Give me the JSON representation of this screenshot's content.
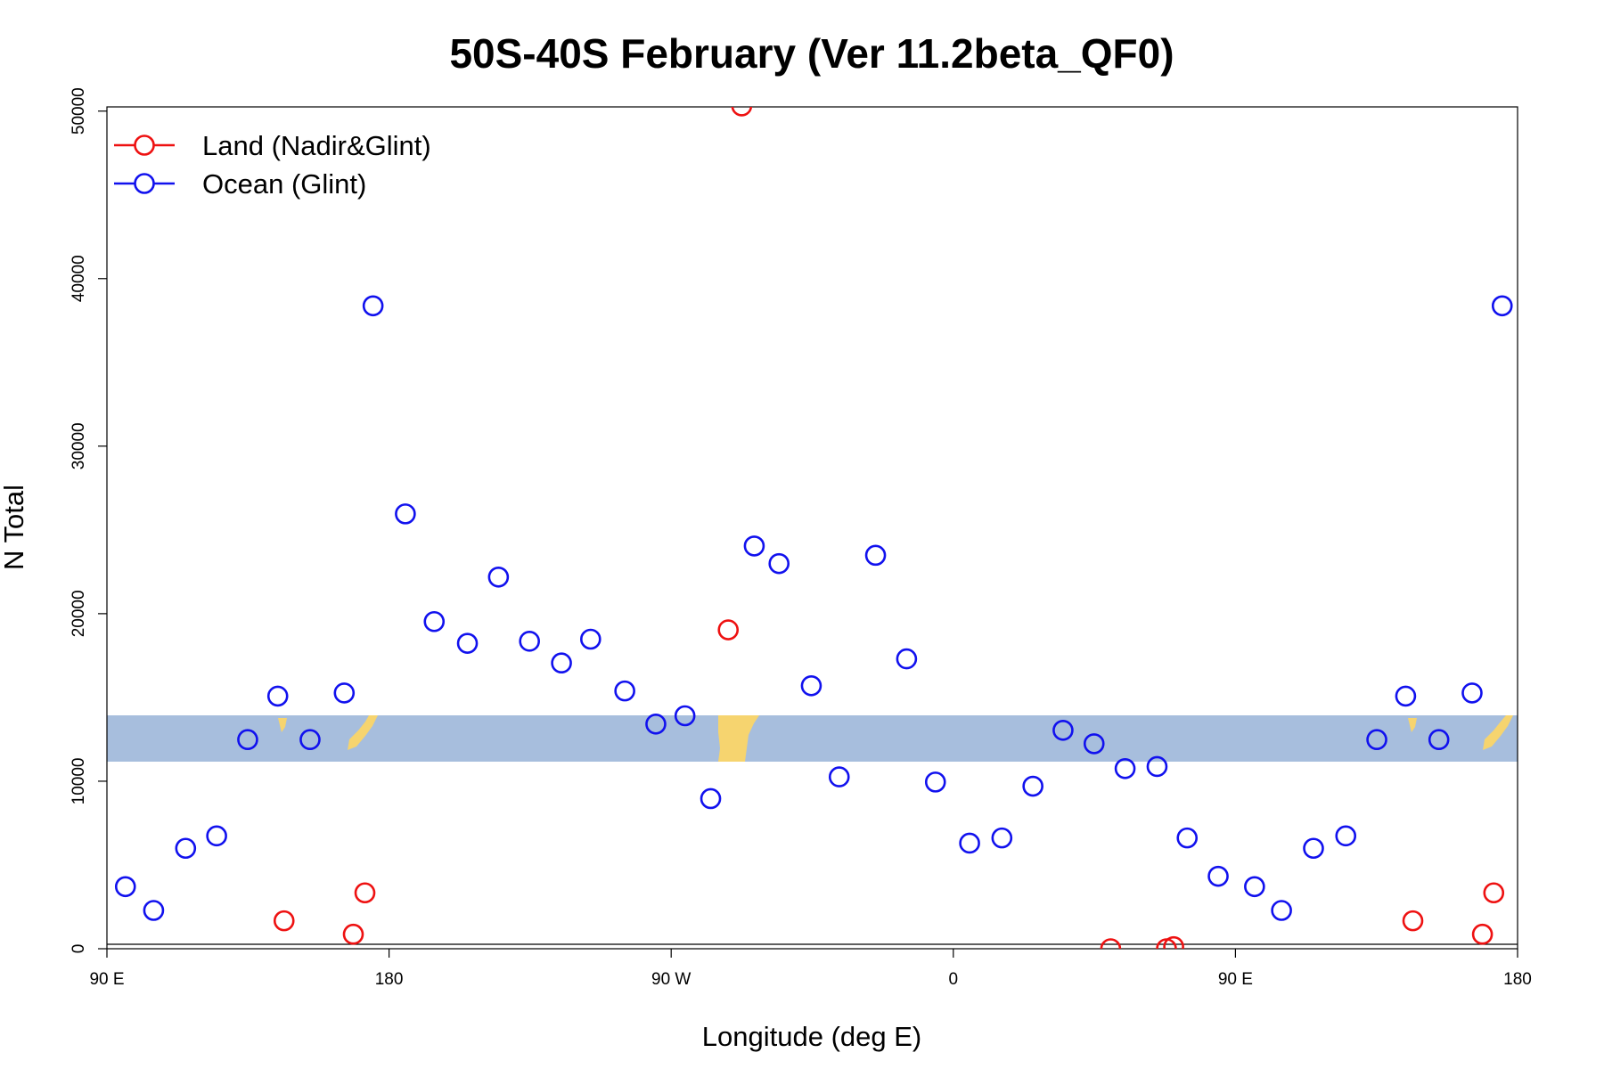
{
  "chart_data": {
    "type": "scatter",
    "title": "50S-40S February (Ver 11.2beta_QF0)",
    "xlabel": "Longitude (deg E)",
    "ylabel": "N Total",
    "xlim": [
      90,
      540
    ],
    "ylim": [
      0,
      50250
    ],
    "xticks": [
      {
        "value": 90,
        "label": "90 E"
      },
      180,
      {
        "value": 270,
        "label": "90 W"
      },
      {
        "value": 360,
        "label": "0"
      },
      {
        "value": 450,
        "label": "90 E"
      },
      {
        "value": 540,
        "label": "180"
      }
    ],
    "yticks": [
      0,
      10000,
      20000,
      30000,
      40000,
      50000
    ],
    "legend": "top-left",
    "series": [
      {
        "name": "Land (Nadir&Glint)",
        "color": "#ee1111",
        "x": [
          146.5,
          168.6,
          172.3,
          288.2,
          292.5,
          410.2,
          428.0,
          430.3,
          506.6,
          528.8,
          532.4
        ],
        "values": [
          1669,
          865,
          3337,
          19034,
          50305,
          0,
          0,
          124,
          1669,
          865,
          3337
        ]
      },
      {
        "name": "Ocean (Glint)",
        "color": "#1111ee",
        "x": [
          95.9,
          104.9,
          115.1,
          125.0,
          134.9,
          144.5,
          154.8,
          165.7,
          174.9,
          185.2,
          194.4,
          205.0,
          214.9,
          224.8,
          235.0,
          244.3,
          255.2,
          265.1,
          274.4,
          282.6,
          296.5,
          304.4,
          314.7,
          323.6,
          335.2,
          345.1,
          354.3,
          365.2,
          375.5,
          385.4,
          395.0,
          404.9,
          414.8,
          425.0,
          434.6,
          444.5,
          456.1,
          464.7,
          474.9,
          485.2,
          495.1,
          504.3,
          514.9,
          525.5,
          535.1
        ],
        "values": [
          3708,
          2287,
          5995,
          6736,
          12484,
          15079,
          12484,
          15265,
          38378,
          25956,
          19529,
          18231,
          22186,
          18355,
          17057,
          18478,
          15388,
          13411,
          13905,
          8961,
          24040,
          22990,
          15697,
          10259,
          23484,
          17304,
          9950,
          6304,
          6613,
          9703,
          13040,
          12236,
          10753,
          10877,
          6613,
          4326,
          3708,
          2287,
          5995,
          6736,
          12484,
          15079,
          12484,
          15265,
          38378
        ]
      }
    ]
  }
}
